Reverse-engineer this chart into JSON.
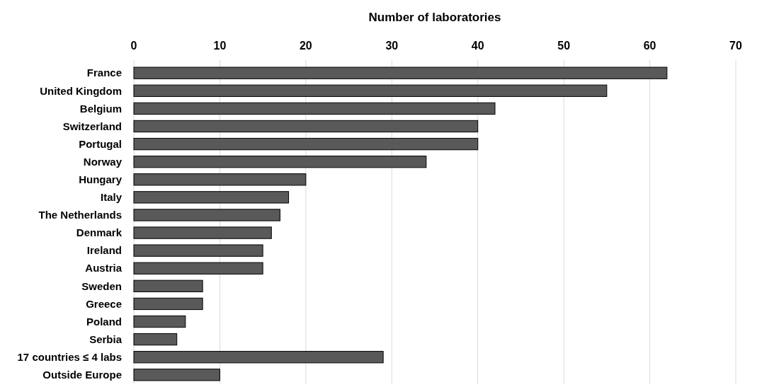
{
  "chart_data": {
    "type": "bar",
    "orientation": "horizontal",
    "xlabel": "Number of laboratories",
    "categories": [
      "France",
      "United Kingdom",
      "Belgium",
      "Switzerland",
      "Portugal",
      "Norway",
      "Hungary",
      "Italy",
      "The Netherlands",
      "Denmark",
      "Ireland",
      "Austria",
      "Sweden",
      "Greece",
      "Poland",
      "Serbia",
      "17 countries ≤ 4 labs",
      "Outside Europe"
    ],
    "values": [
      62,
      55,
      42,
      40,
      40,
      34,
      20,
      18,
      17,
      16,
      15,
      15,
      8,
      8,
      6,
      5,
      29,
      10
    ],
    "color": "#595959",
    "xlim": [
      0,
      70
    ],
    "xticks": [
      0,
      10,
      20,
      30,
      40,
      50,
      60,
      70
    ],
    "grid": "x"
  }
}
